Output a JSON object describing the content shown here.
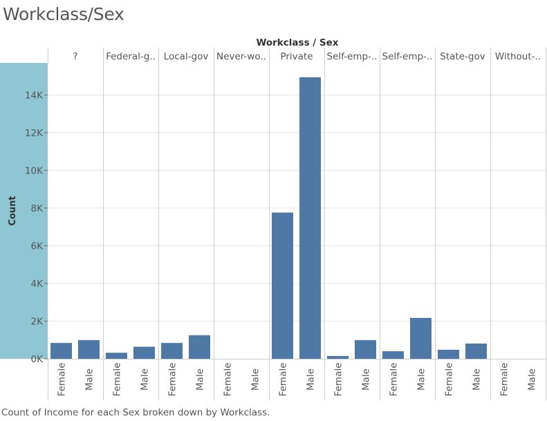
{
  "page": {
    "title": "Workclass/Sex",
    "caption": "Count of Income for each Sex broken down by Workclass."
  },
  "colors": {
    "bar": "#4e79a7",
    "axis_band": "#8fc6d3",
    "gridline": "#e4e4e4",
    "divider": "#cccccc",
    "text": "#555555",
    "header_text": "#333333"
  },
  "chart_data": {
    "type": "bar",
    "title": "Workclass / Sex",
    "xlabel": "",
    "ylabel": "Count",
    "ylim": [
      0,
      15700
    ],
    "yticks": [
      0,
      2000,
      4000,
      6000,
      8000,
      10000,
      12000,
      14000
    ],
    "ytick_labels": [
      "0K",
      "2K",
      "4K",
      "6K",
      "8K",
      "10K",
      "12K",
      "14K"
    ],
    "grid": true,
    "groups": [
      {
        "name": "?",
        "bars": [
          {
            "category": "Female",
            "value": 840
          },
          {
            "category": "Male",
            "value": 990
          }
        ]
      },
      {
        "name": "Federal-g..",
        "bars": [
          {
            "category": "Female",
            "value": 320
          },
          {
            "category": "Male",
            "value": 640
          }
        ]
      },
      {
        "name": "Local-gov",
        "bars": [
          {
            "category": "Female",
            "value": 840
          },
          {
            "category": "Male",
            "value": 1250
          }
        ]
      },
      {
        "name": "Never-wo..",
        "bars": [
          {
            "category": "Female",
            "value": 5
          },
          {
            "category": "Male",
            "value": 5
          }
        ]
      },
      {
        "name": "Private",
        "bars": [
          {
            "category": "Female",
            "value": 7760
          },
          {
            "category": "Male",
            "value": 14940
          }
        ]
      },
      {
        "name": "Self-emp-..",
        "bars": [
          {
            "category": "Female",
            "value": 150
          },
          {
            "category": "Male",
            "value": 990
          }
        ]
      },
      {
        "name": "Self-emp-..",
        "bars": [
          {
            "category": "Female",
            "value": 400
          },
          {
            "category": "Male",
            "value": 2170
          }
        ]
      },
      {
        "name": "State-gov",
        "bars": [
          {
            "category": "Female",
            "value": 480
          },
          {
            "category": "Male",
            "value": 810
          }
        ]
      },
      {
        "name": "Without-..",
        "bars": [
          {
            "category": "Female",
            "value": 5
          },
          {
            "category": "Male",
            "value": 5
          }
        ]
      }
    ]
  }
}
